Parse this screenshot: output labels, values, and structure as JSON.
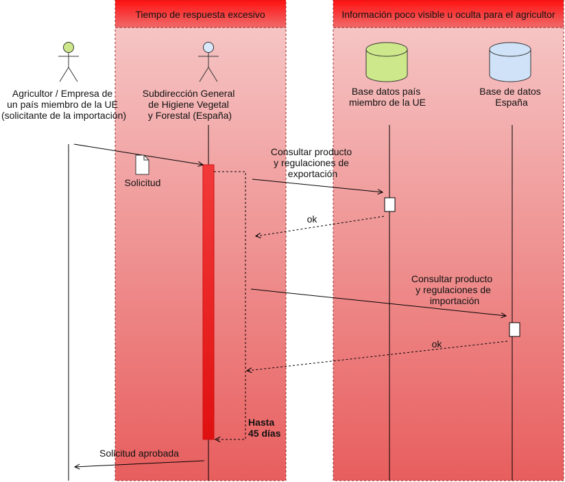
{
  "colors": {
    "lane_header_top": "#ff1010",
    "lane_header_bottom": "#f06a6a",
    "lane_body_top": "#f6c4c4",
    "lane_body_bottom": "#e85e5e",
    "activation_top": "#f23a3a",
    "activation_bottom": "#e01010",
    "actor_green": "#cde88a",
    "actor_blue": "#dae8fc",
    "db_green": "#cde88a",
    "db_blue": "#cfe2f8"
  },
  "lanes": {
    "response_time": "Tiempo de respuesta excesivo",
    "info_hidden": "Información poco visible u oculta para el agricultor"
  },
  "participants": {
    "farmer": {
      "lines": [
        "Agricultor / Empresa de",
        "un país miembro de la UE",
        "(solicitante de la importación)"
      ],
      "icon": "stick-figure-actor"
    },
    "ministry": {
      "lines": [
        "Subdirección General",
        "de Higiene Vegetal",
        "y Forestal (España)"
      ],
      "icon": "stick-figure-actor"
    },
    "db_eu": {
      "lines": [
        "Base datos país",
        "miembro de la UE"
      ],
      "icon": "database-cylinder"
    },
    "db_es": {
      "lines": [
        "Base de datos",
        "España"
      ],
      "icon": "database-cylinder"
    }
  },
  "messages": {
    "request_doc": "Solicitud",
    "consult_export": [
      "Consultar producto",
      "y regulaciones de",
      "exportación"
    ],
    "ok_1": "ok",
    "consult_import": [
      "Consultar producto",
      "y regulaciones de",
      "importación"
    ],
    "ok_2": "ok",
    "deadline": [
      "Hasta",
      "45 días"
    ],
    "approved": "Solicitud aprobada"
  }
}
